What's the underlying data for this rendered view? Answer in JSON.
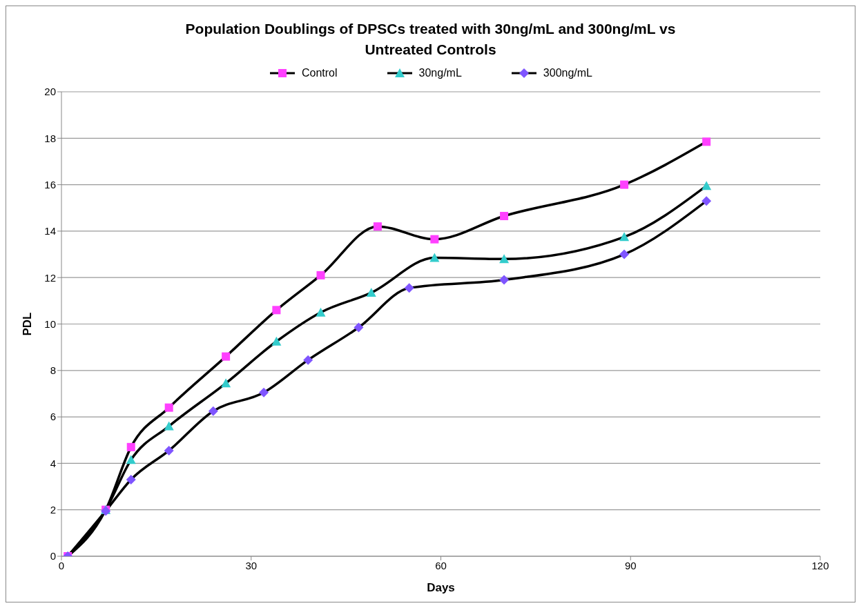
{
  "chart_data": {
    "type": "line",
    "title": "Population Doublings of DPSCs treated with 30ng/mL and 300ng/mL vs Untreated Controls",
    "xlabel": "Days",
    "ylabel": "PDL",
    "xlim": [
      0,
      120
    ],
    "xticks": [
      0,
      30,
      60,
      90,
      120
    ],
    "ylim": [
      0,
      20
    ],
    "yticks": [
      0,
      2,
      4,
      6,
      8,
      10,
      12,
      14,
      16,
      18,
      20
    ],
    "grid": "y",
    "legend": "top",
    "line_style": "solid",
    "series": [
      {
        "name": "Control",
        "color": "#ff40ff",
        "marker": "square",
        "x": [
          1,
          7,
          11,
          17,
          26,
          34,
          41,
          50,
          59,
          70,
          89,
          102
        ],
        "values": [
          0,
          2.0,
          4.7,
          6.4,
          8.6,
          10.6,
          12.1,
          14.2,
          13.65,
          14.65,
          16.0,
          17.85
        ]
      },
      {
        "name": "30ng/mL",
        "color": "#33cccc",
        "marker": "triangle",
        "x": [
          1,
          7,
          11,
          17,
          26,
          34,
          41,
          49,
          59,
          70,
          89,
          102
        ],
        "values": [
          0,
          2.0,
          4.15,
          5.6,
          7.45,
          9.25,
          10.5,
          11.35,
          12.85,
          12.8,
          13.75,
          15.95
        ]
      },
      {
        "name": "300ng/mL",
        "color": "#7f55ff",
        "marker": "diamond",
        "x": [
          1,
          7,
          11,
          17,
          24,
          32,
          39,
          47,
          55,
          70,
          89,
          102
        ],
        "values": [
          0,
          1.95,
          3.3,
          4.55,
          6.25,
          7.05,
          8.45,
          9.85,
          11.55,
          11.9,
          13.0,
          15.3
        ]
      }
    ]
  }
}
